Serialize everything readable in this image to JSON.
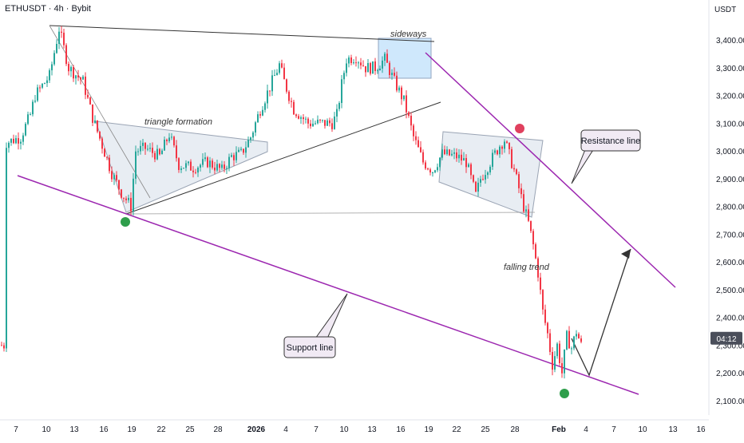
{
  "header": {
    "symbol_line": "ETHUSDT · 4h · Bybit",
    "currency": "USDT"
  },
  "colors": {
    "up": "#26a69a",
    "down": "#f23645",
    "trendline": "#9c27b0",
    "triangle_fill": "#e6ebf2",
    "sideways_fill": "#bbdefb",
    "dot_green": "#2e9e4b",
    "dot_red": "#e0405e",
    "price_tag": "#4a4e5a"
  },
  "chart_data": {
    "type": "candlestick",
    "y_axis": {
      "min": 2050,
      "max": 3500,
      "ticks": [
        "3,400.00",
        "3,300.00",
        "3,200.00",
        "3,100.00",
        "3,000.00",
        "2,900.00",
        "2,800.00",
        "2,700.00",
        "2,600.00",
        "2,500.00",
        "2,400.00",
        "2,300.00",
        "2,200.00",
        "2,100.00"
      ],
      "current_price_label": "04:12"
    },
    "x_axis": {
      "ticks": [
        "7",
        "10",
        "13",
        "16",
        "19",
        "22",
        "25",
        "28",
        "2026",
        "4",
        "7",
        "10",
        "13",
        "16",
        "19",
        "22",
        "25",
        "28",
        "Feb",
        "4",
        "7",
        "10",
        "13",
        "16"
      ]
    },
    "price_path": [
      [
        2,
        3030
      ],
      [
        8,
        3050
      ],
      [
        12,
        3130
      ],
      [
        14,
        3200
      ],
      [
        20,
        3270
      ],
      [
        24,
        3440
      ],
      [
        28,
        3300
      ],
      [
        34,
        3250
      ],
      [
        38,
        3120
      ],
      [
        42,
        3020
      ],
      [
        46,
        2920
      ],
      [
        50,
        2850
      ],
      [
        54,
        2800
      ],
      [
        56,
        3000
      ],
      [
        60,
        3010
      ],
      [
        66,
        2980
      ],
      [
        70,
        3060
      ],
      [
        74,
        2950
      ],
      [
        80,
        2940
      ],
      [
        86,
        2960
      ],
      [
        92,
        2930
      ],
      [
        96,
        2980
      ],
      [
        100,
        2990
      ],
      [
        104,
        3050
      ],
      [
        108,
        3150
      ],
      [
        112,
        3230
      ],
      [
        116,
        3310
      ],
      [
        118,
        3250
      ],
      [
        122,
        3150
      ],
      [
        128,
        3100
      ],
      [
        132,
        3100
      ],
      [
        138,
        3100
      ],
      [
        140,
        3130
      ],
      [
        142,
        3240
      ],
      [
        144,
        3330
      ],
      [
        148,
        3340
      ],
      [
        152,
        3300
      ],
      [
        156,
        3300
      ],
      [
        160,
        3330
      ],
      [
        164,
        3250
      ],
      [
        168,
        3180
      ],
      [
        172,
        3050
      ],
      [
        176,
        2960
      ],
      [
        180,
        2930
      ],
      [
        184,
        2990
      ],
      [
        190,
        2980
      ],
      [
        194,
        2960
      ],
      [
        198,
        2840
      ],
      [
        200,
        2900
      ],
      [
        204,
        2960
      ],
      [
        208,
        3020
      ],
      [
        210,
        3040
      ],
      [
        214,
        2930
      ],
      [
        218,
        2800
      ],
      [
        220,
        2740
      ],
      [
        222,
        2660
      ],
      [
        224,
        2560
      ],
      [
        226,
        2420
      ],
      [
        228,
        2340
      ],
      [
        230,
        2230
      ],
      [
        232,
        2300
      ],
      [
        234,
        2200
      ],
      [
        236,
        2330
      ],
      [
        238,
        2290
      ],
      [
        240,
        2350
      ],
      [
        242,
        2300
      ]
    ],
    "annotations": [
      {
        "label": "triangle formation"
      },
      {
        "label": "sideways"
      },
      {
        "label": "falling trend"
      },
      {
        "label": "Resistance line"
      },
      {
        "label": "Support line"
      }
    ]
  }
}
